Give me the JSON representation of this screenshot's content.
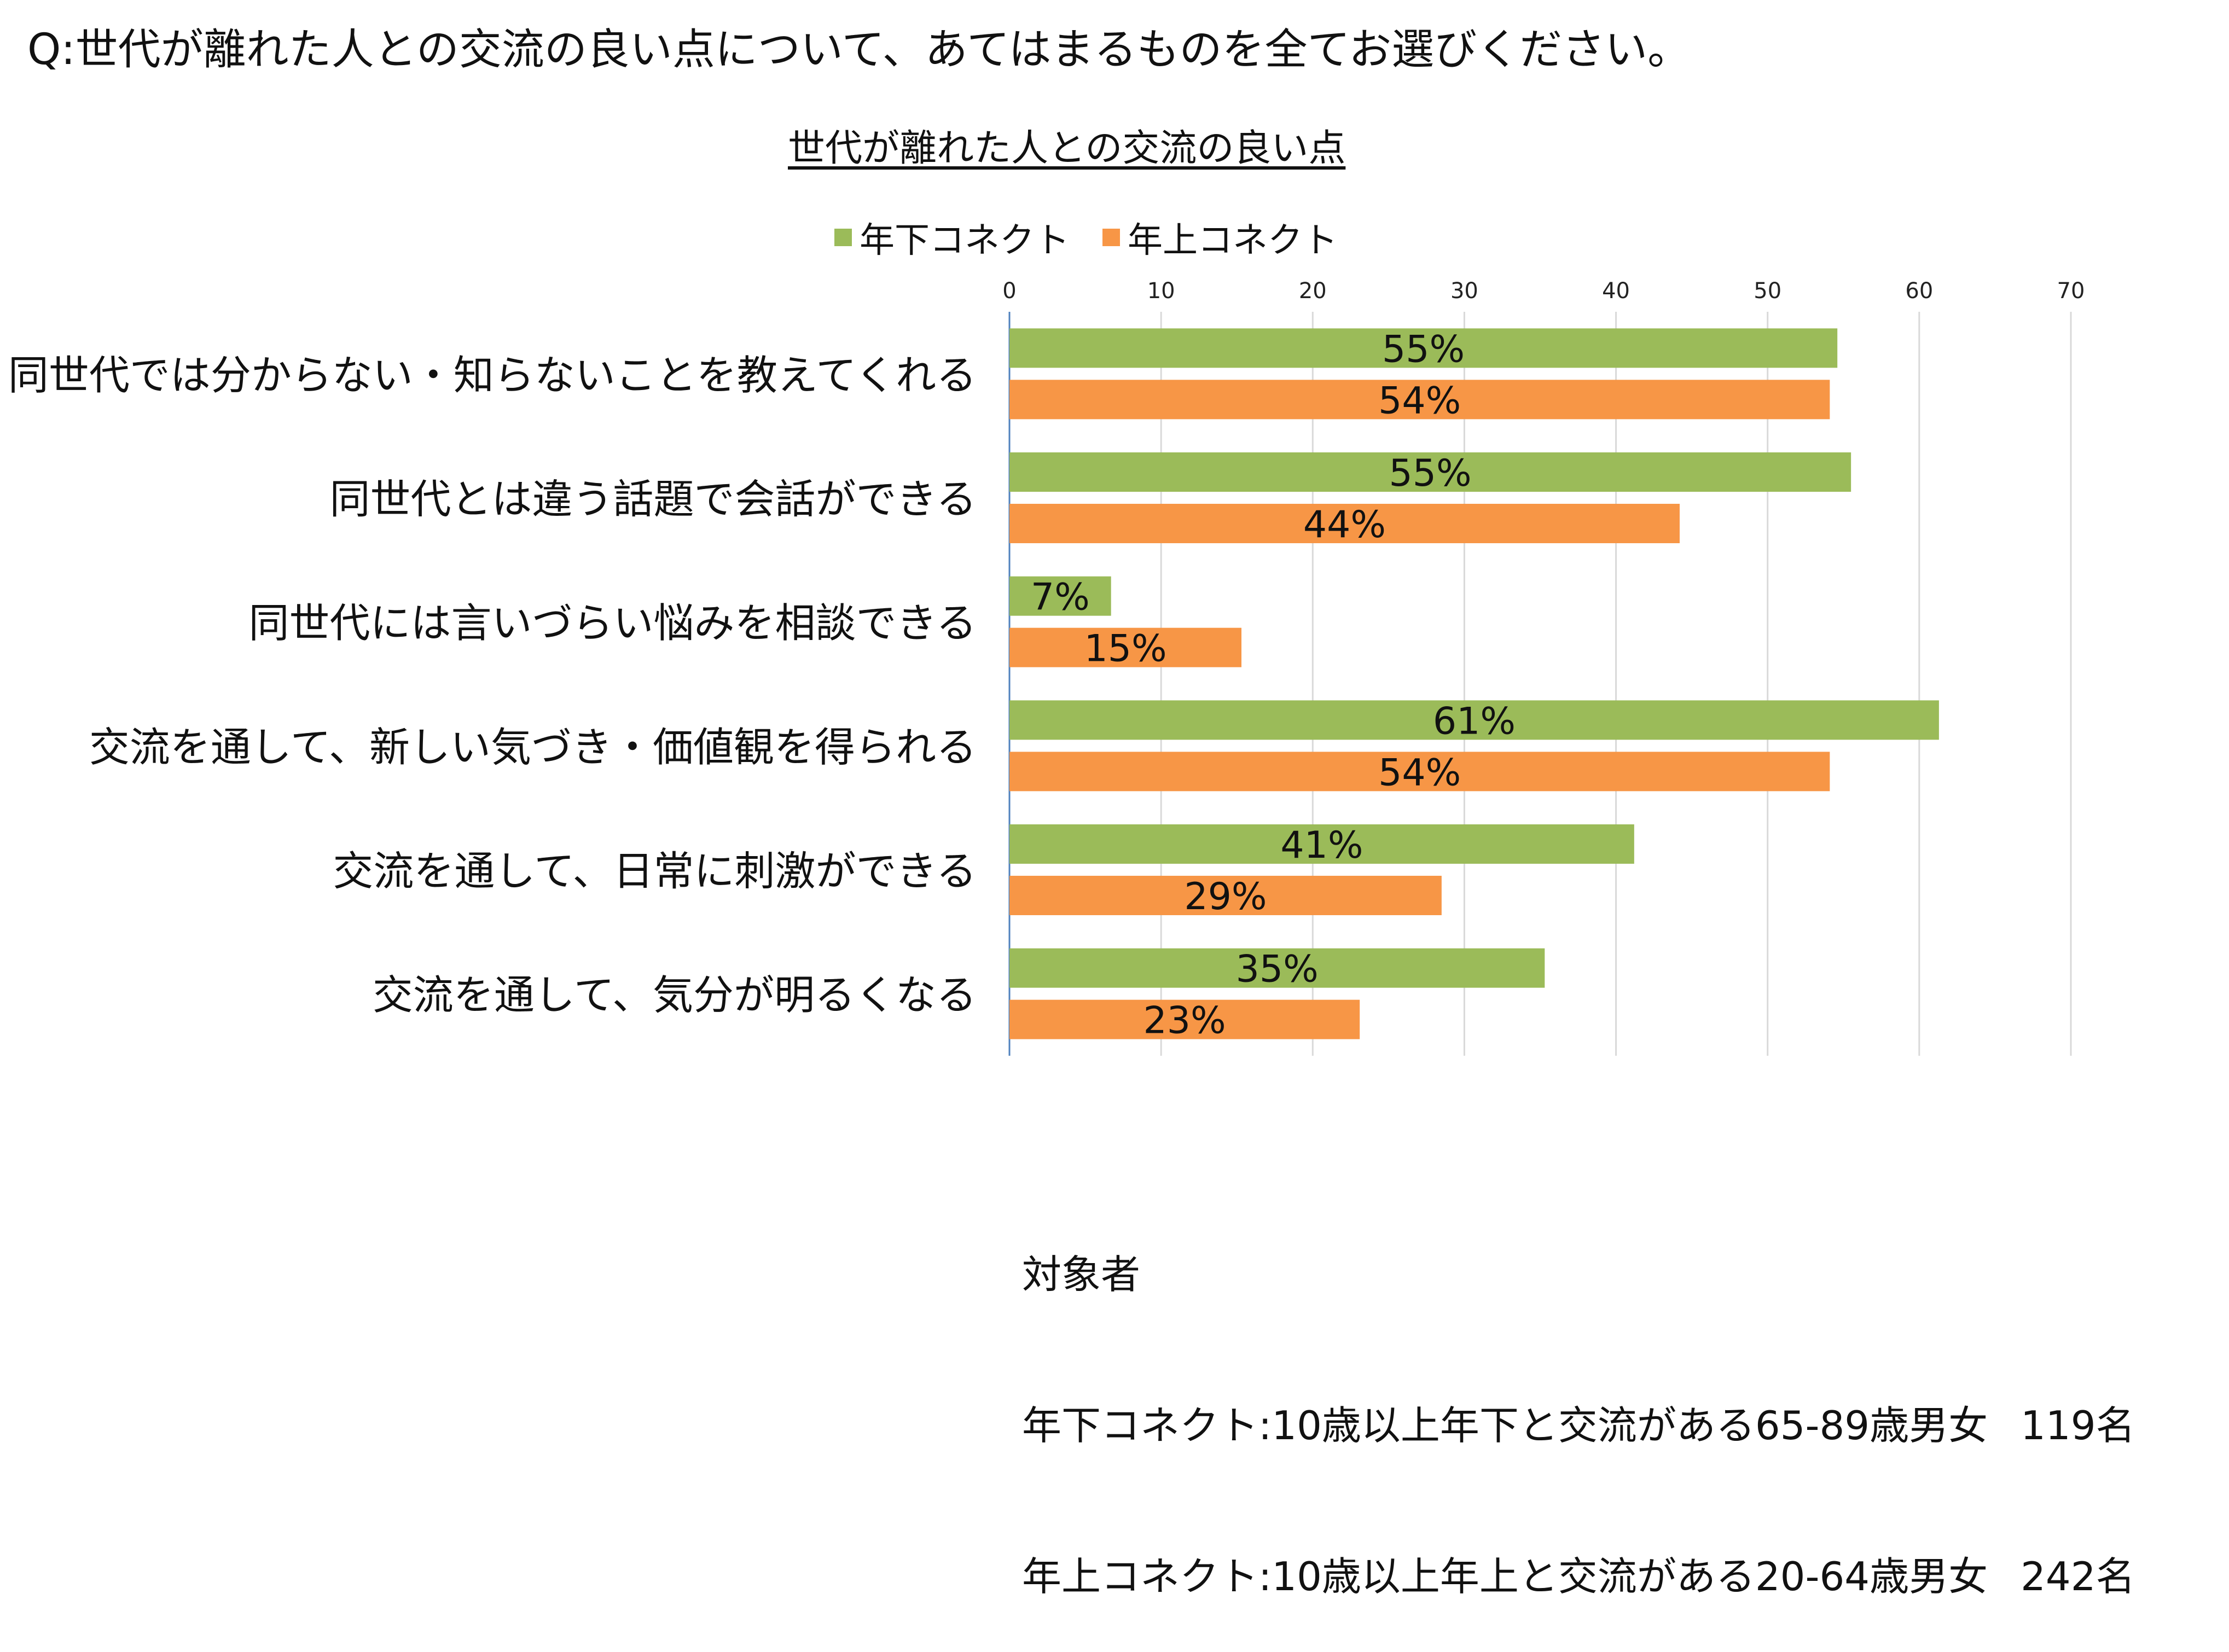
{
  "question": "Q:世代が離れた人との交流の良い点について、あてはまるものを全てお選びください。",
  "colors": {
    "series_1": "#9BBB59",
    "series_2": "#F79646",
    "axis": "#4F81BD",
    "grid": "#D9D9D9"
  },
  "chart_data": {
    "type": "bar",
    "orientation": "horizontal",
    "title": "世代が離れた人との交流の良い点",
    "categories": [
      "同世代では分からない・知らないことを教えてくれる",
      "同世代とは違う話題で会話ができる",
      "同世代には言いづらい悩みを相談できる",
      "交流を通して、新しい気づき・価値観を得られる",
      "交流を通して、日常に刺激ができる",
      "交流を通して、気分が明るくなる"
    ],
    "series": [
      {
        "name": "年下コネクト",
        "values": [
          54.6,
          55.5,
          6.7,
          61.3,
          41.2,
          35.3
        ],
        "labels": [
          "55%",
          "55%",
          "7%",
          "61%",
          "41%",
          "35%"
        ]
      },
      {
        "name": "年上コネクト",
        "values": [
          54.1,
          44.2,
          15.3,
          54.1,
          28.5,
          23.1
        ],
        "labels": [
          "54%",
          "44%",
          "15%",
          "54%",
          "29%",
          "23%"
        ]
      }
    ],
    "xlim": [
      0,
      70
    ],
    "xticks": [
      0,
      10,
      20,
      30,
      40,
      50,
      60,
      70
    ],
    "grid": true,
    "legend_position": "top"
  },
  "footnote": {
    "heading": "対象者",
    "rows": [
      {
        "text": "年下コネクト:10歳以上年下と交流がある65-89歳男女",
        "count": "119名"
      },
      {
        "text": "年上コネクト:10歳以上年上と交流がある20-64歳男女",
        "count": "242名"
      }
    ]
  }
}
